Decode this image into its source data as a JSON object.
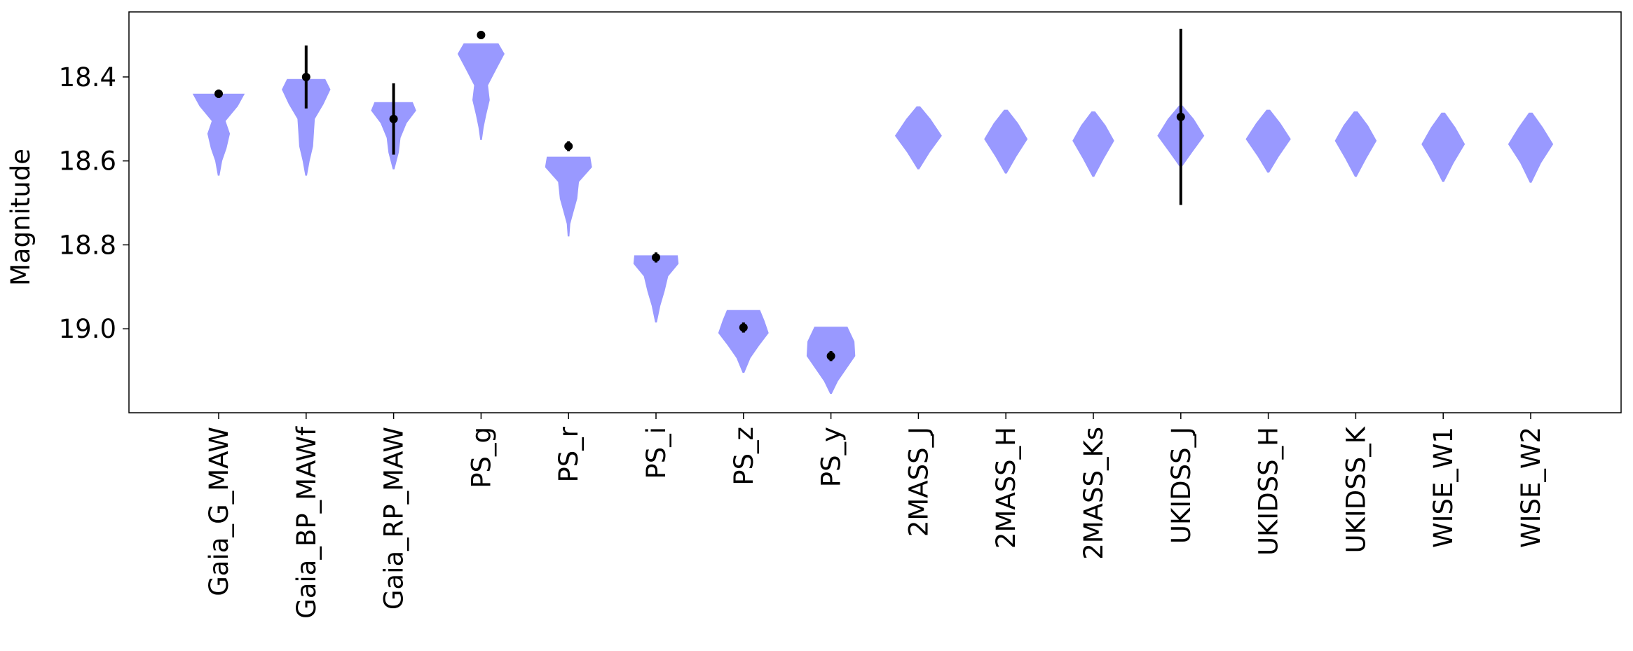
{
  "chart_data": {
    "type": "violin",
    "title": "",
    "xlabel": "",
    "ylabel": "Magnitude",
    "y_inverted": true,
    "ylim": [
      19.2,
      18.245
    ],
    "yticks": [
      18.4,
      18.6,
      18.8,
      19.0
    ],
    "ytick_labels": [
      "18.4",
      "18.6",
      "18.8",
      "19.0"
    ],
    "grid": false,
    "violin_color": "#9999ff",
    "marker_color": "#000000",
    "categories": [
      "Gaia_G_MAW",
      "Gaia_BP_MAWf",
      "Gaia_RP_MAW",
      "PS_g",
      "PS_r",
      "PS_i",
      "PS_z",
      "PS_y",
      "2MASS_J",
      "2MASS_H",
      "2MASS_Ks",
      "UKIDSS_J",
      "UKIDSS_H",
      "UKIDSS_K",
      "WISE_W1",
      "WISE_W2"
    ],
    "violins": [
      {
        "min": 18.44,
        "max": 18.635,
        "width_profile": [
          [
            18.44,
            0.3
          ],
          [
            18.47,
            0.22
          ],
          [
            18.505,
            0.08
          ],
          [
            18.535,
            0.13
          ],
          [
            18.57,
            0.09
          ],
          [
            18.6,
            0.04
          ],
          [
            18.635,
            0.01
          ]
        ]
      },
      {
        "min": 18.405,
        "max": 18.635,
        "width_profile": [
          [
            18.405,
            0.22
          ],
          [
            18.43,
            0.28
          ],
          [
            18.465,
            0.2
          ],
          [
            18.5,
            0.1
          ],
          [
            18.53,
            0.09
          ],
          [
            18.565,
            0.08
          ],
          [
            18.6,
            0.04
          ],
          [
            18.635,
            0.01
          ]
        ]
      },
      {
        "min": 18.46,
        "max": 18.62,
        "width_profile": [
          [
            18.46,
            0.22
          ],
          [
            18.48,
            0.26
          ],
          [
            18.51,
            0.15
          ],
          [
            18.545,
            0.08
          ],
          [
            18.58,
            0.06
          ],
          [
            18.62,
            0.01
          ]
        ]
      },
      {
        "min": 18.32,
        "max": 18.55,
        "width_profile": [
          [
            18.32,
            0.2
          ],
          [
            18.345,
            0.27
          ],
          [
            18.38,
            0.18
          ],
          [
            18.42,
            0.08
          ],
          [
            18.455,
            0.1
          ],
          [
            18.49,
            0.06
          ],
          [
            18.52,
            0.03
          ],
          [
            18.55,
            0.01
          ]
        ]
      },
      {
        "min": 18.59,
        "max": 18.78,
        "width_profile": [
          [
            18.59,
            0.25
          ],
          [
            18.615,
            0.27
          ],
          [
            18.65,
            0.12
          ],
          [
            18.69,
            0.1
          ],
          [
            18.72,
            0.06
          ],
          [
            18.75,
            0.02
          ],
          [
            18.78,
            0.01
          ]
        ]
      },
      {
        "min": 18.825,
        "max": 18.985,
        "width_profile": [
          [
            18.825,
            0.25
          ],
          [
            18.845,
            0.26
          ],
          [
            18.875,
            0.14
          ],
          [
            18.91,
            0.1
          ],
          [
            18.945,
            0.05
          ],
          [
            18.985,
            0.01
          ]
        ]
      },
      {
        "min": 18.955,
        "max": 19.105,
        "width_profile": [
          [
            18.955,
            0.19
          ],
          [
            18.98,
            0.24
          ],
          [
            19.01,
            0.29
          ],
          [
            19.04,
            0.18
          ],
          [
            19.07,
            0.08
          ],
          [
            19.105,
            0.01
          ]
        ]
      },
      {
        "min": 18.995,
        "max": 19.155,
        "width_profile": [
          [
            18.995,
            0.19
          ],
          [
            19.03,
            0.27
          ],
          [
            19.065,
            0.28
          ],
          [
            19.095,
            0.18
          ],
          [
            19.125,
            0.08
          ],
          [
            19.155,
            0.01
          ]
        ]
      },
      {
        "min": 18.47,
        "max": 18.62,
        "width_profile": [
          [
            18.47,
            0.02
          ],
          [
            18.5,
            0.14
          ],
          [
            18.54,
            0.27
          ],
          [
            18.58,
            0.13
          ],
          [
            18.62,
            0.01
          ]
        ]
      },
      {
        "min": 18.478,
        "max": 18.63,
        "width_profile": [
          [
            18.478,
            0.02
          ],
          [
            18.51,
            0.14
          ],
          [
            18.548,
            0.25
          ],
          [
            18.59,
            0.12
          ],
          [
            18.63,
            0.01
          ]
        ]
      },
      {
        "min": 18.482,
        "max": 18.638,
        "width_profile": [
          [
            18.482,
            0.02
          ],
          [
            18.515,
            0.14
          ],
          [
            18.552,
            0.24
          ],
          [
            18.595,
            0.12
          ],
          [
            18.638,
            0.01
          ]
        ]
      },
      {
        "min": 18.468,
        "max": 18.615,
        "width_profile": [
          [
            18.468,
            0.02
          ],
          [
            18.5,
            0.15
          ],
          [
            18.54,
            0.27
          ],
          [
            18.58,
            0.13
          ],
          [
            18.615,
            0.01
          ]
        ]
      },
      {
        "min": 18.478,
        "max": 18.628,
        "width_profile": [
          [
            18.478,
            0.02
          ],
          [
            18.51,
            0.14
          ],
          [
            18.548,
            0.26
          ],
          [
            18.59,
            0.12
          ],
          [
            18.628,
            0.01
          ]
        ]
      },
      {
        "min": 18.482,
        "max": 18.638,
        "width_profile": [
          [
            18.482,
            0.02
          ],
          [
            18.515,
            0.14
          ],
          [
            18.552,
            0.24
          ],
          [
            18.595,
            0.12
          ],
          [
            18.638,
            0.01
          ]
        ]
      },
      {
        "min": 18.485,
        "max": 18.65,
        "width_profile": [
          [
            18.485,
            0.02
          ],
          [
            18.52,
            0.14
          ],
          [
            18.56,
            0.25
          ],
          [
            18.605,
            0.12
          ],
          [
            18.65,
            0.01
          ]
        ]
      },
      {
        "min": 18.485,
        "max": 18.652,
        "width_profile": [
          [
            18.485,
            0.02
          ],
          [
            18.52,
            0.14
          ],
          [
            18.56,
            0.26
          ],
          [
            18.605,
            0.12
          ],
          [
            18.652,
            0.01
          ]
        ]
      }
    ],
    "observations": [
      {
        "value": 18.44,
        "error": 0.01
      },
      {
        "value": 18.4,
        "error": 0.075
      },
      {
        "value": 18.5,
        "error": 0.085
      },
      {
        "value": 18.3,
        "error": 0.01
      },
      {
        "value": 18.565,
        "error": 0.012
      },
      {
        "value": 18.83,
        "error": 0.012
      },
      {
        "value": 18.997,
        "error": 0.012
      },
      {
        "value": 19.065,
        "error": 0.012
      },
      null,
      null,
      null,
      {
        "value": 18.495,
        "error": 0.21
      },
      null,
      null,
      null,
      null
    ]
  }
}
